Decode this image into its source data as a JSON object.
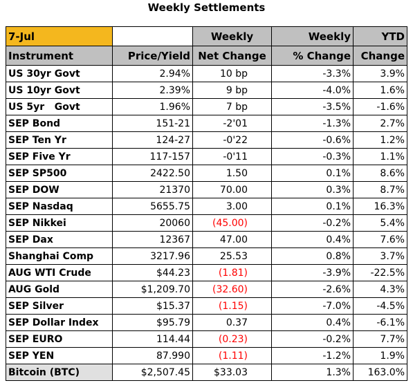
{
  "header": {
    "title": "Weekly Settlements"
  },
  "table": {
    "header_top": [
      "7-Jul",
      "",
      "Weekly",
      "Weekly",
      "YTD"
    ],
    "header_bottom": [
      "Instrument",
      "Price/Yield",
      "Net Change",
      "% Change",
      "Change"
    ],
    "rows": [
      [
        "US 30yr Govt",
        "2.94%",
        "10 bp",
        "-3.3%",
        "3.9%"
      ],
      [
        "US 10yr Govt",
        "2.39%",
        "9 bp",
        "-4.0%",
        "1.6%"
      ],
      [
        "US 5yr   Govt",
        "1.96%",
        "7 bp",
        "-3.5%",
        "-1.6%"
      ],
      [
        "SEP Bond",
        "151-21",
        "-2'01",
        "-1.3%",
        "2.7%"
      ],
      [
        "SEP Ten Yr",
        "124-27",
        "-0'22",
        "-0.6%",
        "1.2%"
      ],
      [
        "SEP Five Yr",
        "117-157",
        "-0'11",
        "-0.3%",
        "1.1%"
      ],
      [
        "SEP SP500",
        "2422.50",
        "1.50",
        "0.1%",
        "8.6%"
      ],
      [
        "SEP DOW",
        "21370",
        "70.00",
        "0.3%",
        "8.7%"
      ],
      [
        "SEP Nasdaq",
        "5655.75",
        "3.00",
        "0.1%",
        "16.3%"
      ],
      [
        "SEP Nikkei",
        "20060",
        "(45.00)",
        "-0.2%",
        "5.4%"
      ],
      [
        "SEP Dax",
        "12367",
        "47.00",
        "0.4%",
        "7.6%"
      ],
      [
        "Shanghai Comp",
        "3217.96",
        "25.53",
        "0.8%",
        "3.7%"
      ],
      [
        "AUG WTI Crude",
        "$44.23",
        "(1.81)",
        "-3.9%",
        "-22.5%"
      ],
      [
        "AUG Gold",
        "$1,209.70",
        "(32.60)",
        "-2.6%",
        "4.3%"
      ],
      [
        "SEP Silver",
        "$15.37",
        "(1.15)",
        "-7.0%",
        "-4.5%"
      ],
      [
        "SEP Dollar Index",
        "$95.79",
        "0.37",
        "0.4%",
        "-6.1%"
      ],
      [
        "SEP EURO",
        "114.44",
        "(0.23)",
        "-0.2%",
        "7.7%"
      ],
      [
        "SEP YEN",
        "87.990",
        "(1.11)",
        "-1.2%",
        "1.9%"
      ],
      [
        "Bitcoin (BTC)",
        "$2,507.45",
        "$33.03",
        "1.3%",
        "163.0%"
      ]
    ]
  }
}
